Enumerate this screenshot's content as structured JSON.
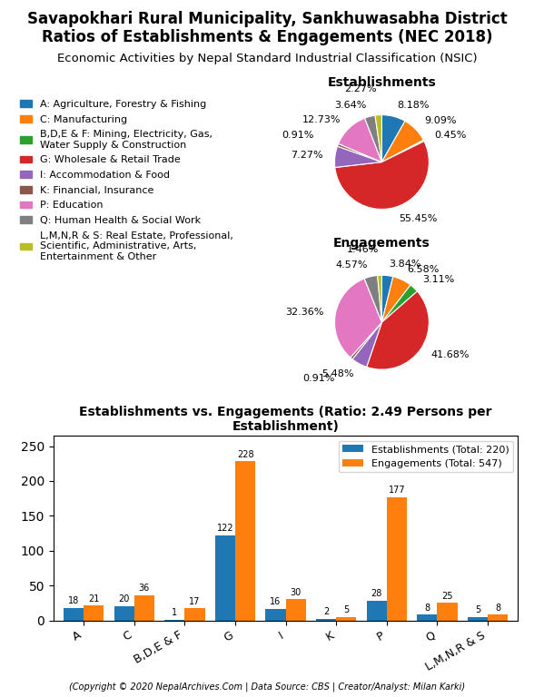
{
  "title": "Savapokhari Rural Municipality, Sankhuwasabha District\nRatios of Establishments & Engagements (NEC 2018)",
  "subtitle": "Economic Activities by Nepal Standard Industrial Classification (NSIC)",
  "annotations": [
    "(Copyright © 2020 NepalArchives.Com | Data Source: CBS | Creator/Analyst: Milan Karki)"
  ],
  "chart_data": [
    {
      "type": "pie",
      "title": "Establishments",
      "categories": [
        "A: Agriculture, Forestry & Fishing",
        "C: Manufacturing",
        "B,D,E & F: Mining, Electricity, Gas,\nWater Supply & Construction",
        "G: Wholesale & Retail Trade",
        "I: Accommodation & Food",
        "K: Financial, Insurance",
        "P: Education",
        "Q: Human Health & Social Work",
        "L,M,N,R & S: Real Estate, Professional,\nScientific, Administrative, Arts,\nEntertainment & Other"
      ],
      "values": [
        8.18,
        9.09,
        0.45,
        55.45,
        7.27,
        0.91,
        12.73,
        3.64,
        2.27
      ],
      "value_labels": [
        "8.18%",
        "9.09%",
        "0.45%",
        "55.45%",
        "7.27%",
        "0.91%",
        "12.73%",
        "3.64%",
        "2.27%"
      ],
      "data_labels": true,
      "legend": "upper left"
    },
    {
      "type": "pie",
      "title": "Engagements",
      "values": [
        3.84,
        6.58,
        3.11,
        41.68,
        5.48,
        0.91,
        32.36,
        4.57,
        1.46
      ],
      "value_labels": [
        "3.84%",
        "6.58%",
        "3.11%",
        "41.68%",
        "5.48%",
        "0.91%",
        "32.36%",
        "4.57%",
        "1.46%"
      ],
      "data_labels": true
    },
    {
      "type": "bar",
      "title": "Establishments vs. Engagements (Ratio: 2.49 Persons per Establishment)",
      "categories": [
        "A",
        "C",
        "B,D,E & F",
        "G",
        "I",
        "K",
        "P",
        "Q",
        "L,M,N,R & S"
      ],
      "series": [
        {
          "name": "Establishments (Total: 220)",
          "values": [
            18,
            20,
            1,
            122,
            16,
            2,
            28,
            8,
            5
          ]
        },
        {
          "name": "Engagements (Total: 547)",
          "values": [
            21,
            36,
            17,
            228,
            30,
            5,
            177,
            25,
            8
          ]
        }
      ],
      "ylim": [
        0,
        265
      ],
      "yticks": [
        0,
        50,
        100,
        150,
        200,
        250
      ],
      "data_labels": true,
      "legend": "upper right"
    }
  ]
}
